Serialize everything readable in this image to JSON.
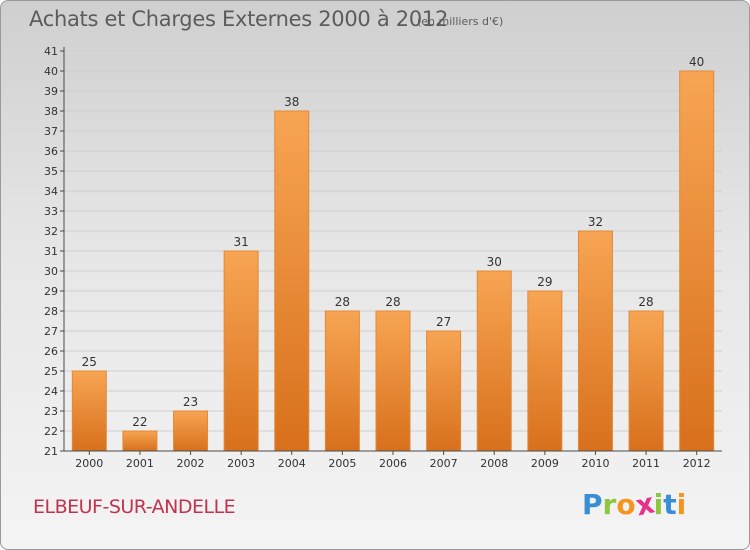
{
  "title": "Achats et Charges Externes 2000 à 2012",
  "subtitle": "(en milliers d'€)",
  "location": "ELBEUF-SUR-ANDELLE",
  "brand": {
    "letters": [
      "P",
      "r",
      "o",
      "x",
      "i",
      "t",
      "i"
    ],
    "colors": [
      "#3a8ed6",
      "#8dc63f",
      "#f7941d",
      "#e8318a",
      "#8dc63f",
      "#3a8ed6",
      "#f7941d"
    ]
  },
  "colors": {
    "bar_top": "#f7a553",
    "bar_bottom": "#d8701c",
    "bar_edge": "#e08a3a",
    "axis": "#4a4a4a",
    "grid": "#cfcfcf",
    "text": "#333333"
  },
  "chart_data": {
    "type": "bar",
    "categories": [
      "2000",
      "2001",
      "2002",
      "2003",
      "2004",
      "2005",
      "2006",
      "2007",
      "2008",
      "2009",
      "2010",
      "2011",
      "2012"
    ],
    "values": [
      25,
      22,
      23,
      31,
      38,
      28,
      28,
      27,
      30,
      29,
      32,
      28,
      40
    ],
    "title": "Achats et Charges Externes 2000 à 2012",
    "xlabel": "",
    "ylabel": "",
    "ylim": [
      21,
      41
    ],
    "yticks": [
      21,
      22,
      23,
      24,
      25,
      26,
      27,
      28,
      29,
      30,
      31,
      32,
      33,
      34,
      35,
      36,
      37,
      38,
      39,
      40,
      41
    ],
    "grid": true,
    "data_labels": true
  }
}
